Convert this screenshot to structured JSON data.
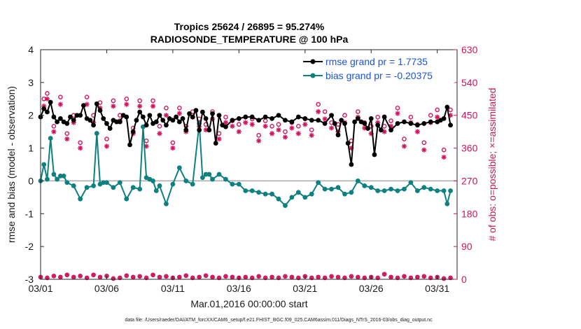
{
  "chart_data": {
    "type": "line",
    "title": "Tropics 25624 / 26895 = 95.274%",
    "subtitle": "RADIOSONDE_TEMPERATURE @ 100 hPa",
    "xlabel": "Mar.01,2016 00:00:00 start",
    "ylabel": "rmse and bias (model - observation)",
    "ylabel_right": "# of obs: o=possible; ×=assimilated",
    "footer": "data file: /Users/raeder/DAI/ATM_forcXX/CAM6_setup/f.e21.FHIST_BGC.f09_025.CAM6assim.011/Diags_NTrS_2016-03/obs_diag_output.nc",
    "xlim": [
      0,
      31.5
    ],
    "ylim": [
      -3,
      4
    ],
    "ylim_right": [
      0,
      630
    ],
    "x_ticks": [
      0,
      5,
      10,
      15,
      20,
      25,
      30
    ],
    "x_tick_labels": [
      "03/01",
      "03/06",
      "03/11",
      "03/16",
      "03/21",
      "03/26",
      "03/31"
    ],
    "y_ticks": [
      -3,
      -2,
      -1,
      0,
      1,
      2,
      3,
      4
    ],
    "y_tick_labels": [
      "-3",
      "-2",
      "-1",
      "0",
      "1",
      "2",
      "3",
      "4"
    ],
    "y_ticks_right": [
      0,
      90,
      180,
      270,
      360,
      450,
      540,
      630
    ],
    "y_tick_labels_right": [
      "0",
      "90",
      "180",
      "270",
      "360",
      "450",
      "540",
      "630"
    ],
    "legend": [
      {
        "label": "rmse grand pr = 1.7735",
        "color": "#000000"
      },
      {
        "label": "bias grand pr = -0.20375",
        "color": "#0d8080"
      }
    ],
    "colors": {
      "rmse": "#000000",
      "bias": "#0d8080",
      "obs": "#d1155f",
      "legend_text": "#1a55d6"
    },
    "series": [
      {
        "name": "rmse",
        "color": "#000000",
        "x": [
          0.0,
          0.25,
          0.5,
          0.75,
          1.0,
          1.25,
          1.5,
          1.75,
          2.0,
          2.25,
          2.5,
          2.75,
          3.0,
          3.25,
          3.5,
          3.75,
          4.0,
          4.25,
          4.5,
          4.75,
          5.0,
          5.25,
          5.5,
          5.75,
          6.0,
          6.25,
          6.5,
          6.75,
          7.0,
          7.25,
          7.5,
          7.75,
          8.0,
          8.25,
          8.5,
          8.75,
          9.0,
          9.25,
          9.5,
          9.75,
          10.0,
          10.25,
          10.5,
          10.75,
          11.0,
          11.25,
          11.5,
          11.75,
          12.0,
          12.25,
          12.5,
          12.75,
          13.0,
          13.25,
          13.5,
          13.75,
          14.0,
          14.5,
          15.0,
          15.5,
          16.0,
          16.5,
          17.0,
          17.5,
          18.0,
          18.5,
          19.0,
          19.5,
          20.0,
          20.5,
          21.0,
          21.5,
          22.0,
          22.25,
          22.5,
          22.75,
          23.0,
          23.25,
          23.5,
          23.75,
          24.0,
          24.25,
          24.5,
          24.75,
          25.0,
          25.25,
          25.5,
          25.75,
          26.0,
          26.5,
          27.0,
          27.5,
          28.0,
          28.5,
          29.0,
          29.5,
          30.0,
          30.25,
          30.5,
          30.75,
          31.0
        ],
        "values": [
          1.95,
          2.2,
          2.1,
          2.4,
          1.95,
          1.8,
          1.9,
          1.8,
          1.75,
          1.95,
          1.85,
          2.0,
          2.0,
          2.3,
          1.9,
          1.85,
          1.7,
          2.35,
          2.15,
          1.9,
          1.75,
          1.6,
          1.85,
          1.8,
          1.8,
          2.0,
          1.95,
          1.1,
          1.5,
          1.85,
          2.1,
          1.95,
          1.7,
          2.0,
          1.75,
          1.8,
          2.0,
          1.85,
          1.7,
          1.9,
          1.85,
          1.95,
          1.8,
          1.9,
          1.55,
          2.05,
          1.95,
          2.15,
          1.55,
          2.1,
          1.9,
          1.55,
          2.05,
          1.15,
          2.0,
          1.7,
          1.65,
          1.85,
          1.9,
          1.95,
          1.95,
          1.85,
          1.95,
          1.9,
          2.0,
          1.85,
          1.8,
          1.95,
          1.9,
          1.85,
          1.85,
          1.75,
          2.0,
          1.75,
          1.4,
          1.85,
          1.75,
          1.15,
          0.5,
          1.8,
          1.9,
          1.8,
          1.75,
          1.6,
          1.9,
          0.8,
          1.7,
          1.55,
          1.95,
          1.55,
          1.75,
          1.8,
          1.75,
          1.7,
          1.75,
          1.8,
          1.8,
          1.85,
          1.9,
          2.25,
          1.7
        ]
      },
      {
        "name": "bias",
        "color": "#0d8080",
        "x": [
          0.0,
          0.25,
          0.5,
          0.75,
          1.0,
          1.25,
          1.5,
          1.75,
          2.0,
          2.5,
          3.0,
          3.5,
          4.0,
          4.25,
          4.5,
          4.75,
          5.0,
          5.5,
          6.0,
          6.5,
          7.0,
          7.5,
          7.75,
          8.0,
          8.25,
          8.5,
          8.75,
          9.0,
          9.5,
          10.0,
          10.5,
          11.0,
          11.5,
          12.0,
          12.25,
          12.5,
          12.75,
          13.0,
          13.5,
          14.0,
          14.5,
          15.0,
          15.5,
          16.0,
          16.5,
          17.0,
          17.5,
          18.0,
          18.5,
          19.0,
          19.5,
          20.0,
          20.5,
          21.0,
          21.5,
          22.0,
          22.5,
          23.0,
          23.5,
          24.0,
          24.5,
          25.0,
          25.5,
          26.0,
          26.5,
          27.0,
          27.5,
          28.0,
          28.5,
          29.0,
          29.5,
          30.0,
          30.5,
          30.75,
          31.0
        ],
        "values": [
          0.0,
          0.5,
          0.05,
          1.3,
          0.2,
          0.05,
          0.15,
          0.15,
          -0.05,
          -0.15,
          -0.55,
          -0.2,
          -0.15,
          1.45,
          -0.1,
          -0.05,
          -0.05,
          -0.2,
          -0.05,
          -0.55,
          -0.2,
          -0.25,
          1.65,
          0.1,
          0.05,
          0.0,
          -0.3,
          -0.15,
          -0.7,
          -0.1,
          0.4,
          0.0,
          -0.1,
          1.75,
          0.1,
          0.2,
          0.2,
          0.05,
          0.2,
          0.05,
          -0.1,
          -0.1,
          -0.3,
          -0.3,
          -0.35,
          -0.4,
          -0.4,
          -0.55,
          -0.75,
          -0.5,
          -0.35,
          -0.5,
          -0.4,
          -0.05,
          -0.25,
          -0.25,
          -0.2,
          -0.4,
          -0.35,
          0.0,
          -0.15,
          -0.2,
          -0.3,
          -0.3,
          -0.25,
          -0.3,
          -0.25,
          -0.05,
          -0.3,
          -0.2,
          -0.25,
          -0.3,
          -0.3,
          -0.7,
          -0.3
        ]
      },
      {
        "name": "possible",
        "axis": "right",
        "marker": "o",
        "color": "#d1155f",
        "x": [
          0.25,
          0.5,
          1.0,
          1.5,
          2.0,
          2.5,
          3.0,
          3.5,
          4.0,
          4.5,
          5.0,
          5.5,
          6.0,
          6.5,
          7.0,
          7.5,
          8.0,
          8.5,
          9.0,
          9.5,
          10.0,
          10.5,
          11.0,
          11.5,
          12.0,
          12.5,
          13.0,
          13.5,
          14.0,
          14.5,
          15.0,
          15.5,
          16.0,
          16.5,
          17.0,
          17.5,
          18.0,
          18.5,
          19.0,
          19.5,
          20.0,
          20.5,
          21.0,
          21.5,
          22.0,
          22.5,
          23.0,
          23.5,
          24.0,
          24.5,
          25.0,
          25.5,
          26.0,
          26.5,
          27.0,
          27.5,
          28.0,
          28.5,
          29.0,
          29.5,
          30.0,
          30.5,
          31.0
        ],
        "values": [
          495,
          510,
          420,
          500,
          400,
          450,
          375,
          500,
          450,
          485,
          385,
          490,
          450,
          495,
          415,
          490,
          380,
          490,
          420,
          470,
          375,
          470,
          420,
          460,
          440,
          425,
          460,
          400,
          445,
          435,
          425,
          445,
          440,
          395,
          435,
          420,
          425,
          405,
          430,
          420,
          440,
          410,
          480,
          460,
          430,
          425,
          450,
          380,
          460,
          430,
          420,
          445,
          420,
          435,
          470,
          385,
          445,
          425,
          375,
          450,
          465,
          355,
          465
        ],
        "offscreen": {
          "0": 520
        }
      },
      {
        "name": "assimilated",
        "axis": "right",
        "marker": "x",
        "color": "#d1155f",
        "x": [
          0.25,
          0.5,
          1.0,
          1.5,
          2.0,
          2.5,
          3.0,
          3.5,
          4.0,
          4.5,
          5.0,
          5.5,
          6.0,
          6.5,
          7.0,
          7.5,
          8.0,
          8.5,
          9.0,
          9.5,
          10.0,
          10.5,
          11.0,
          11.5,
          12.0,
          12.5,
          13.0,
          13.5,
          14.0,
          14.5,
          15.0,
          15.5,
          16.0,
          16.5,
          17.0,
          17.5,
          18.0,
          18.5,
          19.0,
          19.5,
          20.0,
          20.5,
          21.0,
          21.5,
          22.0,
          22.5,
          23.0,
          23.5,
          24.0,
          24.5,
          25.0,
          25.5,
          26.0,
          26.5,
          27.0,
          27.5,
          28.0,
          28.5,
          29.0,
          29.5,
          30.0,
          30.5,
          31.0
        ],
        "values": [
          475,
          495,
          405,
          480,
          385,
          430,
          360,
          480,
          430,
          470,
          365,
          475,
          435,
          480,
          400,
          475,
          365,
          475,
          400,
          450,
          360,
          455,
          405,
          445,
          420,
          410,
          440,
          385,
          430,
          420,
          405,
          430,
          425,
          380,
          420,
          400,
          410,
          390,
          415,
          400,
          425,
          395,
          460,
          440,
          415,
          405,
          430,
          360,
          445,
          415,
          400,
          430,
          405,
          420,
          455,
          365,
          430,
          405,
          355,
          430,
          445,
          335,
          450
        ]
      },
      {
        "name": "possible_bottom",
        "axis": "right",
        "marker": "o",
        "color": "#d1155f",
        "x": [
          0.0,
          0.5,
          1.0,
          1.5,
          2.0,
          2.5,
          3.0,
          3.5,
          4.0,
          4.5,
          5.0,
          5.5,
          6.0,
          6.5,
          7.0,
          7.5,
          8.0,
          8.5,
          9.0,
          9.5,
          10.0,
          10.5,
          11.0,
          11.5,
          12.0,
          12.5,
          13.0,
          13.5,
          14.0,
          14.5,
          15.0,
          15.5,
          16.0,
          16.5,
          17.0,
          17.5,
          18.0,
          18.5,
          19.0,
          19.5,
          20.0,
          20.5,
          21.0,
          21.5,
          22.0,
          22.5,
          23.0,
          23.5,
          24.0,
          24.5,
          25.0,
          25.5,
          26.0,
          26.5,
          27.0,
          27.5,
          28.0,
          28.5,
          29.0,
          29.5,
          30.0,
          30.5,
          31.0
        ],
        "values": [
          6,
          4,
          9,
          6,
          12,
          6,
          9,
          4,
          12,
          6,
          9,
          2,
          4,
          10,
          6,
          8,
          4,
          12,
          6,
          8,
          4,
          6,
          10,
          4,
          6,
          10,
          6,
          4,
          8,
          6,
          4,
          6,
          4,
          8,
          4,
          6,
          4,
          8,
          6,
          4,
          8,
          4,
          6,
          4,
          8,
          6,
          4,
          8,
          6,
          4,
          6,
          4,
          14,
          6,
          4,
          8,
          4,
          6,
          8,
          4,
          6,
          2,
          4
        ]
      }
    ]
  }
}
